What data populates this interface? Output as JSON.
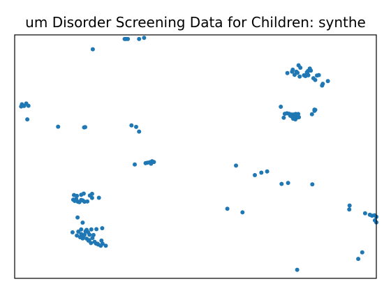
{
  "chart_data": {
    "type": "scatter",
    "title": "um Disorder Screening Data for Children: synthe",
    "xlabel": "",
    "ylabel": "",
    "xlim": [
      0,
      100
    ],
    "ylim": [
      0,
      100
    ],
    "grid": false,
    "color": "#1f77b4",
    "series": [
      {
        "points": [
          [
            2.0,
            71.5
          ],
          [
            2.6,
            70.8
          ],
          [
            3.2,
            71.8
          ],
          [
            3.8,
            70.9
          ],
          [
            1.8,
            70.6
          ],
          [
            3.5,
            65.3
          ],
          [
            12.0,
            62.3
          ],
          [
            19.2,
            62.0
          ],
          [
            19.5,
            62.1
          ],
          [
            21.6,
            94.1
          ],
          [
            30.4,
            98.3
          ],
          [
            30.8,
            98.3
          ],
          [
            31.3,
            98.3
          ],
          [
            34.4,
            98.3
          ],
          [
            35.8,
            98.8
          ],
          [
            32.3,
            62.8
          ],
          [
            33.6,
            62.2
          ],
          [
            34.4,
            60.3
          ],
          [
            33.2,
            46.8
          ],
          [
            36.2,
            47.3
          ],
          [
            36.7,
            47.5
          ],
          [
            37.4,
            47.7
          ],
          [
            38.0,
            48.1
          ],
          [
            38.5,
            47.8
          ],
          [
            37.7,
            47.1
          ],
          [
            16.4,
            34.2
          ],
          [
            17.2,
            33.9
          ],
          [
            18.4,
            34.3
          ],
          [
            19.1,
            34.8
          ],
          [
            20.8,
            34.0
          ],
          [
            21.4,
            34.7
          ],
          [
            23.3,
            33.1
          ],
          [
            16.6,
            31.8
          ],
          [
            17.5,
            31.5
          ],
          [
            18.4,
            32.2
          ],
          [
            19.3,
            31.5
          ],
          [
            20.1,
            31.6
          ],
          [
            21.4,
            33.0
          ],
          [
            16.2,
            32.3
          ],
          [
            17.0,
            32.6
          ],
          [
            18.8,
            32.0
          ],
          [
            17.9,
            31.3
          ],
          [
            16.0,
            18.9
          ],
          [
            17.6,
            19.2
          ],
          [
            18.4,
            20.1
          ],
          [
            19.6,
            19.3
          ],
          [
            20.3,
            18.9
          ],
          [
            21.2,
            20.1
          ],
          [
            22.6,
            20.2
          ],
          [
            24.2,
            20.6
          ],
          [
            18.8,
            22.9
          ],
          [
            17.4,
            25.0
          ],
          [
            17.2,
            17.6
          ],
          [
            18.1,
            16.9
          ],
          [
            19.0,
            17.3
          ],
          [
            19.9,
            16.3
          ],
          [
            20.7,
            17.9
          ],
          [
            21.5,
            16.6
          ],
          [
            22.1,
            15.0
          ],
          [
            22.5,
            14.3
          ],
          [
            23.1,
            13.9
          ],
          [
            24.3,
            14.2
          ],
          [
            23.8,
            13.4
          ],
          [
            25.2,
            13.4
          ],
          [
            24.0,
            15.5
          ],
          [
            20.4,
            15.5
          ],
          [
            19.3,
            17.9
          ],
          [
            18.4,
            18.2
          ],
          [
            20.6,
            15.7
          ],
          [
            21.1,
            14.5
          ],
          [
            21.8,
            17.8
          ],
          [
            18.8,
            16.4
          ],
          [
            19.9,
            19.9
          ],
          [
            22.9,
            14.2
          ],
          [
            58.8,
            28.6
          ],
          [
            63.0,
            27.1
          ],
          [
            61.2,
            46.3
          ],
          [
            66.4,
            42.4
          ],
          [
            68.2,
            43.4
          ],
          [
            69.8,
            43.9
          ],
          [
            73.8,
            38.8
          ],
          [
            75.6,
            39.2
          ],
          [
            82.3,
            38.6
          ],
          [
            73.6,
            70.5
          ],
          [
            74.4,
            66.0
          ],
          [
            74.7,
            67.6
          ],
          [
            75.3,
            67.8
          ],
          [
            75.9,
            67.6
          ],
          [
            76.2,
            66.8
          ],
          [
            76.7,
            66.4
          ],
          [
            77.0,
            65.6
          ],
          [
            77.1,
            66.6
          ],
          [
            77.2,
            67.3
          ],
          [
            77.3,
            66.3
          ],
          [
            77.6,
            65.3
          ],
          [
            77.8,
            66.5
          ],
          [
            78.0,
            66.0
          ],
          [
            78.3,
            66.2
          ],
          [
            78.6,
            66.2
          ],
          [
            78.4,
            67.5
          ],
          [
            77.7,
            67.5
          ],
          [
            76.6,
            67.3
          ],
          [
            76.7,
            66.6
          ],
          [
            82.2,
            67.4
          ],
          [
            82.9,
            68.8
          ],
          [
            83.1,
            69.2
          ],
          [
            82.9,
            69.3
          ],
          [
            75.4,
            84.3
          ],
          [
            76.7,
            84.9
          ],
          [
            76.9,
            85.7
          ],
          [
            77.4,
            83.6
          ],
          [
            78.2,
            84.4
          ],
          [
            78.5,
            87.5
          ],
          [
            79.0,
            86.5
          ],
          [
            78.8,
            82.9
          ],
          [
            80.0,
            83.4
          ],
          [
            80.4,
            83.1
          ],
          [
            80.8,
            84.6
          ],
          [
            81.1,
            85.2
          ],
          [
            81.6,
            86.2
          ],
          [
            81.9,
            85.3
          ],
          [
            81.2,
            83.4
          ],
          [
            82.6,
            82.2
          ],
          [
            83.1,
            81.5
          ],
          [
            83.6,
            83.3
          ],
          [
            84.1,
            83.5
          ],
          [
            85.2,
            79.9
          ],
          [
            85.0,
            79.2
          ],
          [
            86.6,
            81.0
          ],
          [
            77.9,
            84.9
          ],
          [
            80.9,
            84.3
          ],
          [
            92.5,
            28.3
          ],
          [
            92.6,
            29.9
          ],
          [
            96.9,
            26.7
          ],
          [
            98.2,
            26.1
          ],
          [
            98.8,
            25.7
          ],
          [
            99.5,
            25.9
          ],
          [
            100.0,
            25.3
          ],
          [
            99.6,
            23.8
          ],
          [
            100.0,
            23.0
          ],
          [
            96.1,
            10.7
          ],
          [
            95.0,
            8.0
          ],
          [
            78.1,
            3.5
          ]
        ]
      }
    ]
  }
}
